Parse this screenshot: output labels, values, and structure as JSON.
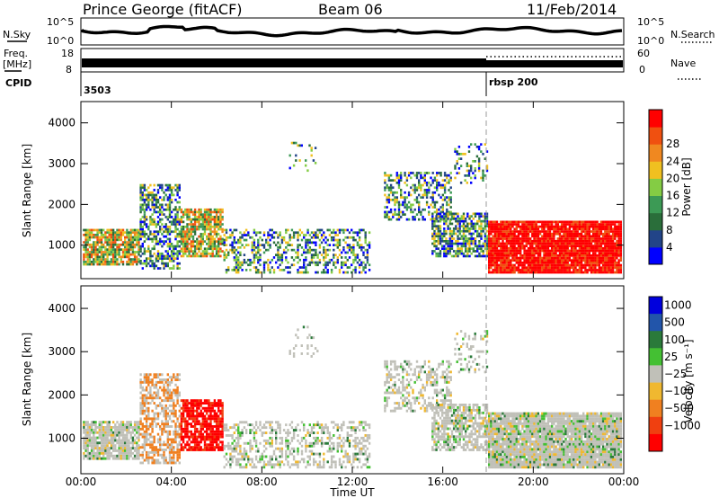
{
  "header": {
    "station": "Prince George (fitACF)",
    "beam": "Beam 06",
    "date": "11/Feb/2014"
  },
  "status_panels": {
    "nsky_label": "N.Sky",
    "nsky_ticks": [
      "10^5",
      "10^0"
    ],
    "nsearch_label": "N.Search",
    "nsearch_ticks": [
      "10^5",
      "10^0"
    ],
    "freq_label_line1": "Freq.",
    "freq_label_line2": "[MHz]",
    "freq_ticks": [
      "18",
      "8"
    ],
    "nave_label": "Nave",
    "nave_ticks": [
      "60",
      "0"
    ],
    "cpid_label": "CPID",
    "cpid_segments": [
      {
        "start_hour": 0,
        "label": "3503"
      },
      {
        "start_hour": 18.0,
        "label": "rbsp 200"
      }
    ]
  },
  "chart_data": [
    {
      "type": "heatmap",
      "name": "power",
      "ylabel": "Slant Range [km]",
      "yticks": [
        "1000",
        "2000",
        "3000",
        "4000"
      ],
      "ylim": [
        200,
        4500
      ],
      "colorbar_label": "Power [dB]",
      "colorbar_ticks": [
        "4",
        "8",
        "12",
        "16",
        "20",
        "24",
        "28"
      ],
      "colorbar_colors": [
        "#0000ff",
        "#224488",
        "#2a6e3a",
        "#3c9a55",
        "#84cc44",
        "#f0c020",
        "#f08820",
        "#f05010",
        "#ff0000"
      ]
    },
    {
      "type": "heatmap",
      "name": "velocity",
      "ylabel": "Slant Range [km]",
      "yticks": [
        "1000",
        "2000",
        "3000",
        "4000"
      ],
      "ylim": [
        200,
        4500
      ],
      "xlabel": "Time UT",
      "xticks": [
        "00:00",
        "04:00",
        "08:00",
        "12:00",
        "16:00",
        "20:00",
        "00:00"
      ],
      "colorbar_label": "Velocity  [m s⁻¹]",
      "colorbar_ticks": [
        "1000",
        "500",
        "100",
        "25",
        "−25",
        "−100",
        "−500",
        "−1000"
      ],
      "colorbar_colors": [
        "#0000dd",
        "#2255aa",
        "#2a7a3a",
        "#44c033",
        "#c0c0b8",
        "#f0b830",
        "#f08020",
        "#f04010",
        "#ff0000"
      ]
    }
  ]
}
